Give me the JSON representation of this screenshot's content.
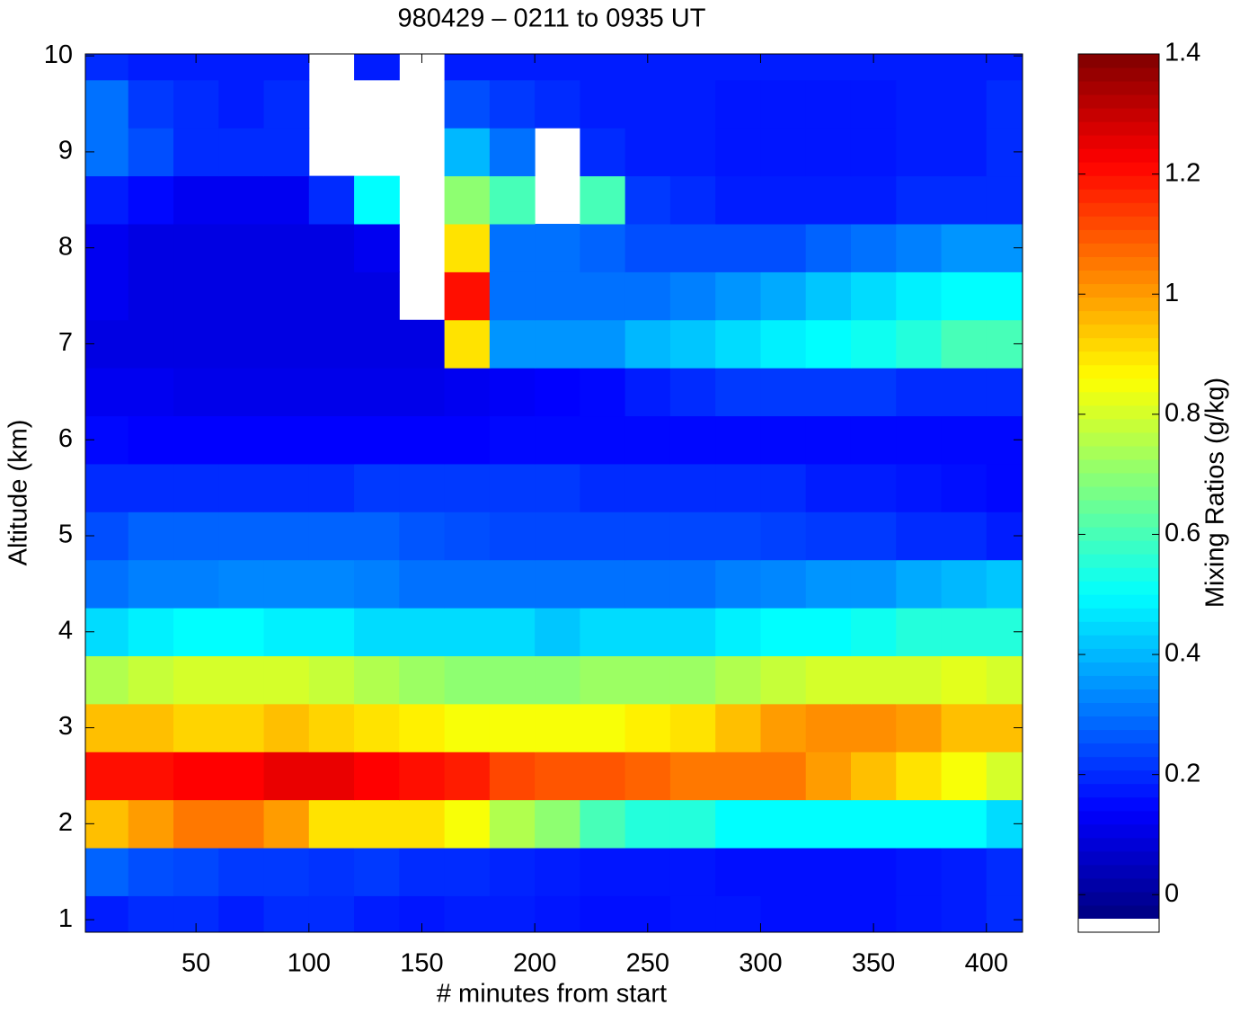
{
  "chart_data": {
    "type": "heatmap",
    "title": "980429 – 0211 to 0935 UT",
    "x_label": "# minutes from start",
    "y_label": "Altitude (km)",
    "colorbar_label": "Mixing Ratios (g/kg)",
    "colormap": "jet",
    "xlim": [
      1,
      416
    ],
    "ylim": [
      0.87,
      10.02
    ],
    "xticks": [
      50,
      100,
      150,
      200,
      250,
      300,
      350,
      400
    ],
    "yticks": [
      1,
      2,
      3,
      4,
      5,
      6,
      7,
      8,
      9,
      10
    ],
    "clim": [
      -0.04,
      1.4
    ],
    "cticks": [
      0,
      0.2,
      0.4,
      0.6,
      0.8,
      1,
      1.2,
      1.4
    ],
    "x": [
      10,
      30,
      50,
      70,
      90,
      110,
      130,
      150,
      170,
      190,
      210,
      230,
      250,
      270,
      290,
      310,
      330,
      350,
      370,
      390,
      410
    ],
    "y": [
      1,
      1.5,
      2,
      2.5,
      3,
      3.5,
      4,
      4.5,
      5,
      5.5,
      6,
      6.5,
      7,
      7.5,
      8,
      8.5,
      9,
      9.5,
      10
    ],
    "z": [
      [
        0.18,
        0.2,
        0.2,
        0.18,
        0.2,
        0.2,
        0.18,
        0.17,
        0.18,
        0.18,
        0.17,
        0.16,
        0.16,
        0.17,
        0.17,
        0.16,
        0.16,
        0.16,
        0.17,
        0.18,
        0.2
      ],
      [
        0.28,
        0.25,
        0.24,
        0.22,
        0.22,
        0.21,
        0.22,
        0.2,
        0.2,
        0.19,
        0.18,
        0.17,
        0.17,
        0.17,
        0.16,
        0.16,
        0.16,
        0.16,
        0.17,
        0.18,
        0.2
      ],
      [
        0.95,
        1.0,
        1.05,
        1.05,
        1.0,
        0.9,
        0.9,
        0.9,
        0.85,
        0.75,
        0.7,
        0.6,
        0.55,
        0.55,
        0.5,
        0.5,
        0.5,
        0.5,
        0.5,
        0.5,
        0.45
      ],
      [
        1.2,
        1.2,
        1.22,
        1.22,
        1.25,
        1.25,
        1.22,
        1.2,
        1.18,
        1.12,
        1.1,
        1.1,
        1.08,
        1.05,
        1.05,
        1.05,
        1.0,
        0.95,
        0.9,
        0.85,
        0.8
      ],
      [
        0.95,
        0.95,
        0.92,
        0.92,
        0.95,
        0.92,
        0.9,
        0.88,
        0.85,
        0.85,
        0.85,
        0.85,
        0.88,
        0.9,
        0.95,
        1.0,
        1.02,
        1.02,
        1.0,
        0.95,
        0.95
      ],
      [
        0.75,
        0.78,
        0.8,
        0.8,
        0.8,
        0.78,
        0.75,
        0.72,
        0.7,
        0.7,
        0.7,
        0.72,
        0.72,
        0.72,
        0.75,
        0.78,
        0.8,
        0.8,
        0.8,
        0.82,
        0.8
      ],
      [
        0.45,
        0.48,
        0.5,
        0.5,
        0.48,
        0.48,
        0.45,
        0.45,
        0.45,
        0.45,
        0.42,
        0.45,
        0.45,
        0.45,
        0.48,
        0.5,
        0.5,
        0.52,
        0.55,
        0.55,
        0.55
      ],
      [
        0.3,
        0.32,
        0.32,
        0.33,
        0.33,
        0.33,
        0.32,
        0.3,
        0.3,
        0.3,
        0.3,
        0.3,
        0.3,
        0.3,
        0.32,
        0.33,
        0.35,
        0.35,
        0.38,
        0.4,
        0.42
      ],
      [
        0.25,
        0.28,
        0.28,
        0.28,
        0.28,
        0.28,
        0.28,
        0.26,
        0.25,
        0.24,
        0.24,
        0.24,
        0.24,
        0.24,
        0.24,
        0.23,
        0.22,
        0.22,
        0.2,
        0.2,
        0.18
      ],
      [
        0.2,
        0.2,
        0.2,
        0.2,
        0.2,
        0.2,
        0.22,
        0.22,
        0.22,
        0.22,
        0.22,
        0.2,
        0.2,
        0.2,
        0.2,
        0.2,
        0.18,
        0.18,
        0.17,
        0.16,
        0.15
      ],
      [
        0.15,
        0.14,
        0.14,
        0.14,
        0.14,
        0.14,
        0.14,
        0.14,
        0.14,
        0.15,
        0.15,
        0.15,
        0.15,
        0.15,
        0.15,
        0.15,
        0.15,
        0.15,
        0.15,
        0.15,
        0.15
      ],
      [
        0.12,
        0.12,
        0.11,
        0.11,
        0.11,
        0.11,
        0.11,
        0.11,
        0.12,
        0.13,
        0.14,
        0.15,
        0.18,
        0.2,
        0.22,
        0.22,
        0.22,
        0.22,
        0.2,
        0.2,
        0.2
      ],
      [
        0.1,
        0.1,
        0.1,
        0.1,
        0.1,
        0.1,
        0.1,
        0.1,
        0.9,
        0.35,
        0.35,
        0.35,
        0.4,
        0.42,
        0.45,
        0.48,
        0.5,
        0.52,
        0.55,
        0.6,
        0.6
      ],
      [
        0.12,
        0.1,
        0.1,
        0.1,
        0.1,
        0.1,
        0.1,
        null,
        1.2,
        0.3,
        0.3,
        0.3,
        0.3,
        0.32,
        0.35,
        0.38,
        0.42,
        0.45,
        0.48,
        0.5,
        0.5
      ],
      [
        0.12,
        0.1,
        0.1,
        0.1,
        0.1,
        0.1,
        0.12,
        null,
        0.9,
        0.3,
        0.3,
        0.28,
        0.25,
        0.25,
        0.25,
        0.25,
        0.28,
        0.3,
        0.32,
        0.35,
        0.35
      ],
      [
        0.18,
        0.15,
        0.12,
        0.12,
        0.12,
        0.2,
        0.5,
        null,
        0.7,
        0.6,
        null,
        0.6,
        0.22,
        0.2,
        0.18,
        0.18,
        0.18,
        0.18,
        0.2,
        0.2,
        0.2
      ],
      [
        0.3,
        0.25,
        0.2,
        0.2,
        0.2,
        null,
        null,
        null,
        0.4,
        0.3,
        null,
        0.2,
        0.18,
        0.18,
        0.17,
        0.17,
        0.17,
        0.17,
        0.18,
        0.18,
        0.2
      ],
      [
        0.3,
        0.22,
        0.2,
        0.18,
        0.2,
        null,
        null,
        null,
        0.25,
        0.22,
        0.2,
        0.18,
        0.18,
        0.18,
        0.17,
        0.17,
        0.17,
        0.17,
        0.18,
        0.18,
        0.2
      ],
      [
        0.2,
        0.18,
        0.18,
        0.18,
        0.18,
        null,
        0.18,
        null,
        0.18,
        0.18,
        0.18,
        0.18,
        0.18,
        0.18,
        0.18,
        0.18,
        0.18,
        0.18,
        0.18,
        0.18,
        0.18
      ]
    ]
  }
}
